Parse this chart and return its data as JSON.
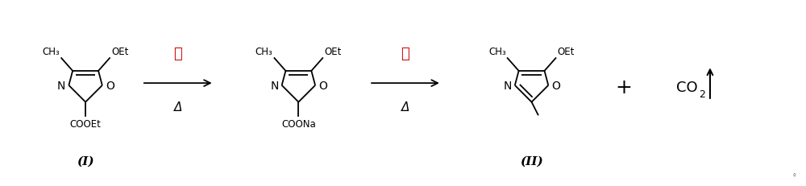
{
  "background_color": "#ffffff",
  "fig_width": 10.0,
  "fig_height": 2.32,
  "dpi": 100,
  "compound_I_label": "(I)",
  "compound_II_label": "(II)",
  "arrow1_label_top": "碱",
  "arrow1_label_bottom": "Δ",
  "arrow2_label_top": "酸",
  "arrow2_label_bottom": "Δ",
  "line_color": "#000000",
  "font_size_small": 8,
  "font_size_med": 9,
  "font_size_large": 11,
  "font_size_co2": 11
}
